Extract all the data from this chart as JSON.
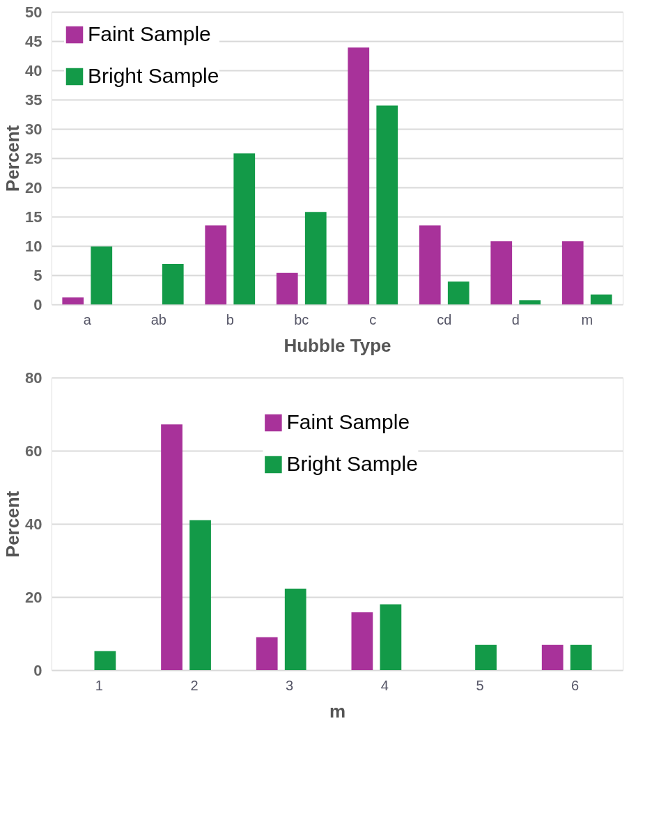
{
  "chart_data": [
    {
      "type": "bar",
      "xlabel": "Hubble Type",
      "ylabel": "Percent",
      "categories": [
        "a",
        "ab",
        "b",
        "bc",
        "c",
        "cd",
        "d",
        "m"
      ],
      "series": [
        {
          "name": "Faint Sample",
          "color": "#a8329a",
          "values": [
            1.2,
            0,
            13.5,
            5.4,
            43.9,
            13.5,
            10.8,
            10.8
          ]
        },
        {
          "name": "Bright Sample",
          "color": "#139a48",
          "values": [
            9.9,
            6.9,
            25.8,
            15.8,
            34.0,
            3.9,
            0.7,
            1.7
          ]
        }
      ],
      "ylim": [
        0,
        50
      ],
      "yticks": [
        0,
        5,
        10,
        15,
        20,
        25,
        30,
        35,
        40,
        45,
        50
      ],
      "grid": "y",
      "legend": "top left"
    },
    {
      "type": "bar",
      "xlabel": "m",
      "ylabel": "Percent",
      "categories": [
        "1",
        "2",
        "3",
        "4",
        "5",
        "6"
      ],
      "series": [
        {
          "name": "Faint Sample",
          "color": "#a8329a",
          "values": [
            0,
            67.2,
            9.0,
            15.8,
            0,
            6.9
          ]
        },
        {
          "name": "Bright Sample",
          "color": "#139a48",
          "values": [
            5.2,
            41.0,
            22.3,
            18.0,
            6.9,
            6.9
          ]
        }
      ],
      "ylim": [
        0,
        80
      ],
      "yticks": [
        0,
        20,
        40,
        60,
        80
      ],
      "grid": "y",
      "legend": "top"
    }
  ]
}
